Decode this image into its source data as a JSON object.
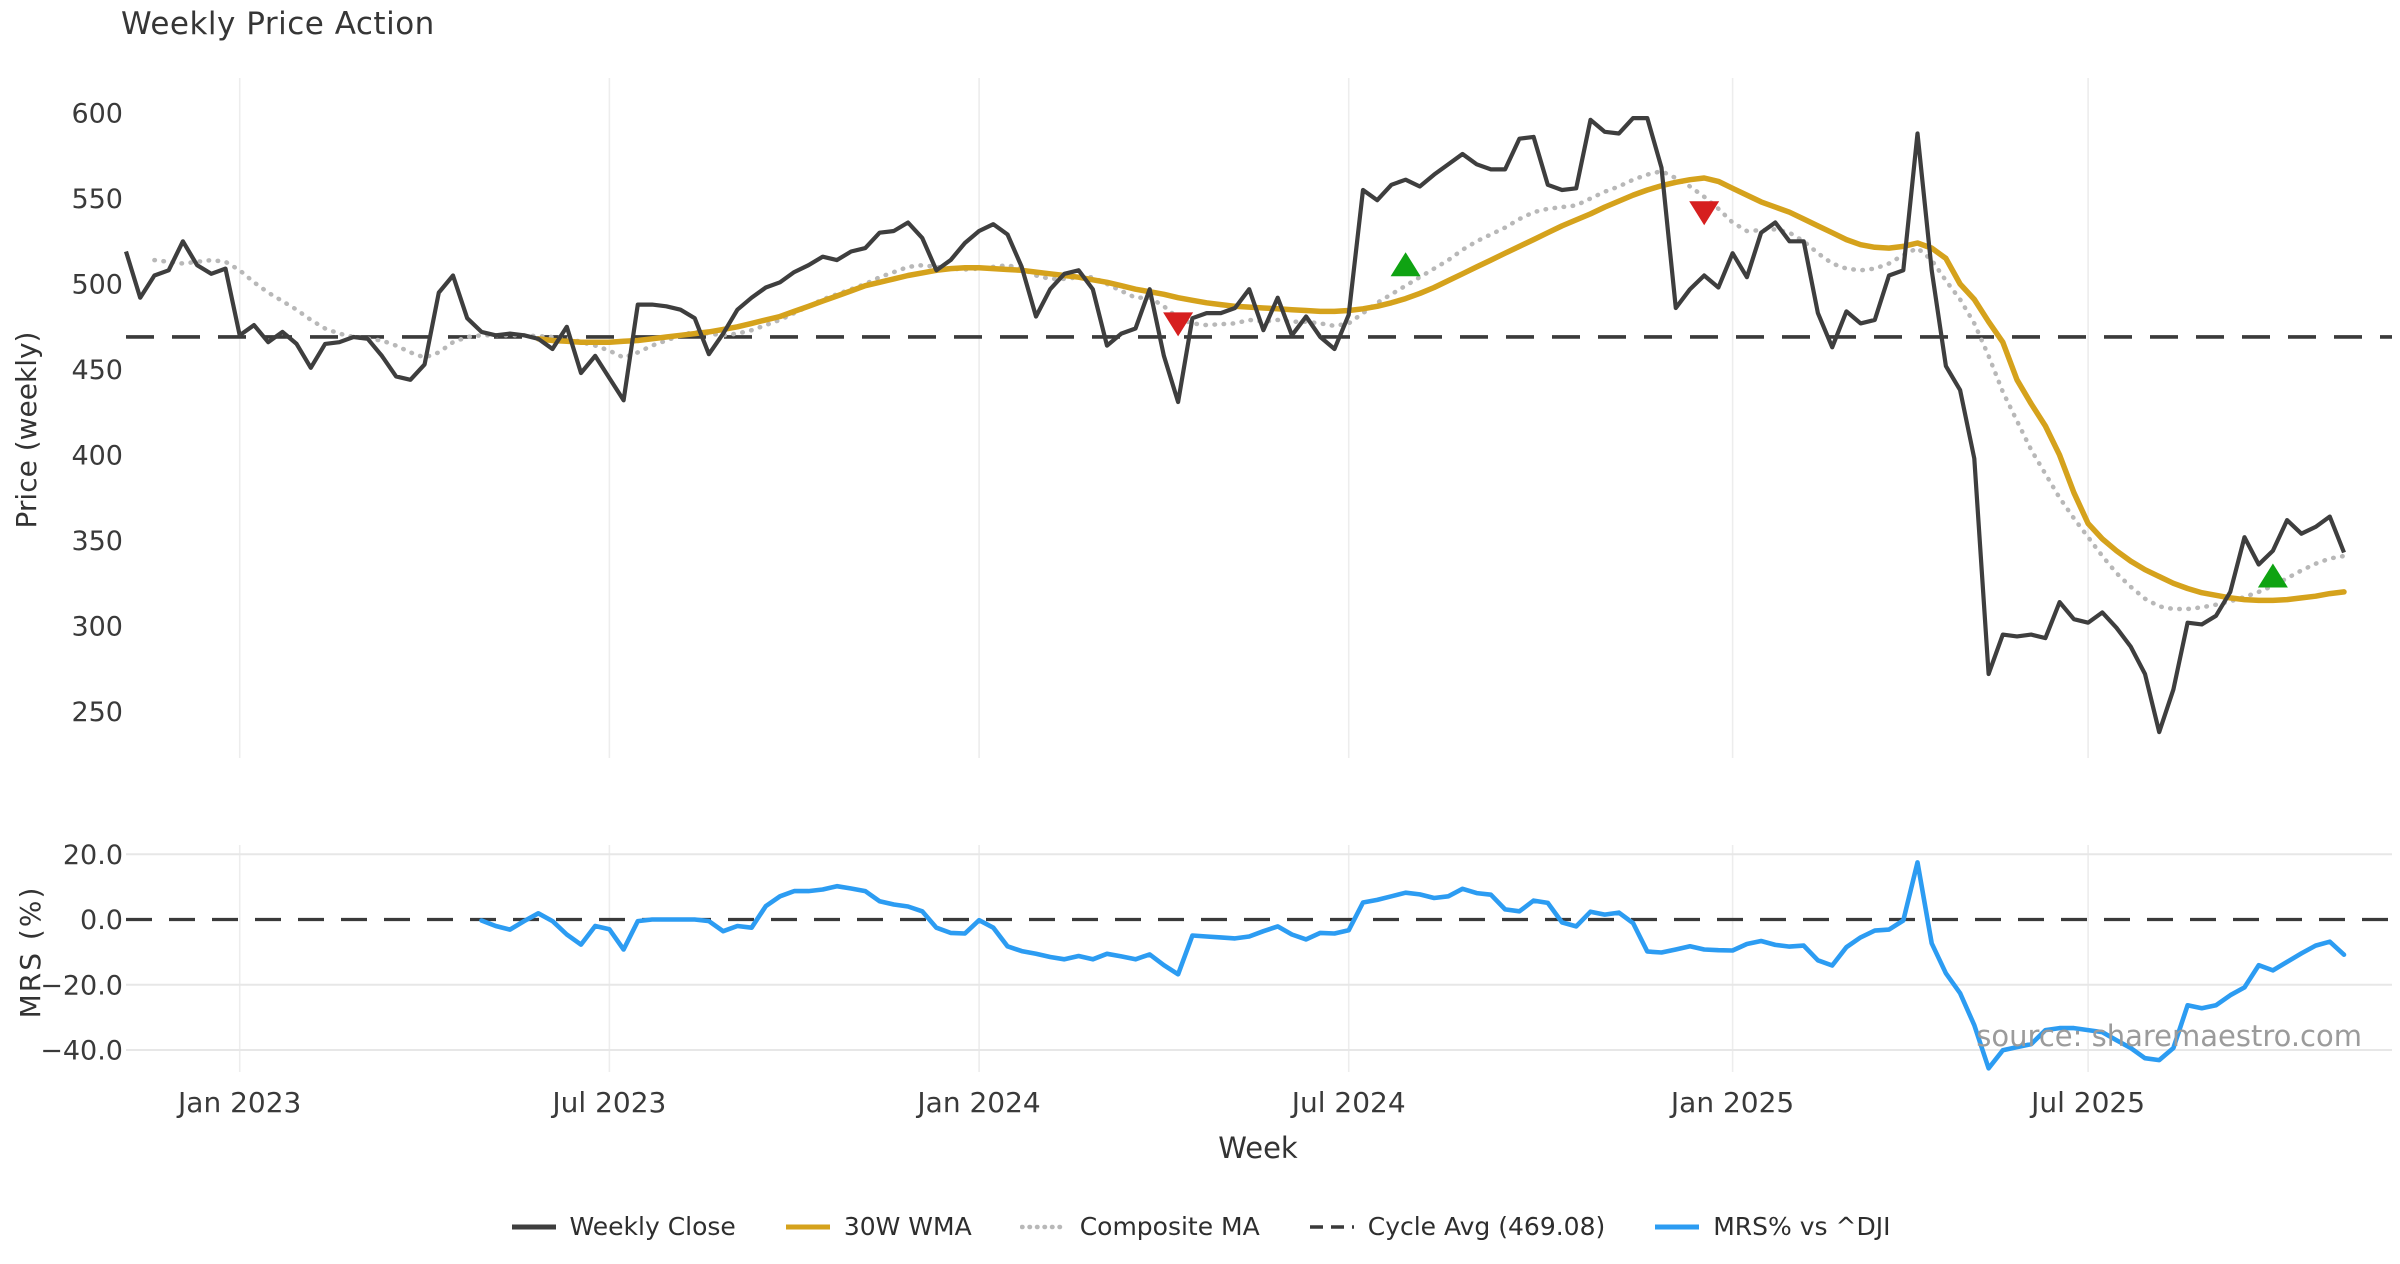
{
  "title": "Weekly Price Action",
  "watermark": "source: sharemaestro.com",
  "xlabel": "Week",
  "legend": {
    "items": [
      {
        "label": "Weekly Close",
        "color": "#3e3e3e",
        "style": "solid"
      },
      {
        "label": "30W WMA",
        "color": "#d5a21c",
        "style": "solid"
      },
      {
        "label": "Composite MA",
        "color": "#b8b8b8",
        "style": "dotted"
      },
      {
        "label": "Cycle Avg (469.08)",
        "color": "#3a3a3a",
        "style": "dashed"
      },
      {
        "label": "MRS% vs ^DJI",
        "color": "#2c9cf2",
        "style": "solid"
      }
    ]
  },
  "chart_data": {
    "type": "line",
    "x_unit": "week",
    "weeks_total": 157,
    "xlabel": "Week",
    "xticks": [
      {
        "week": 8,
        "label": "Jan 2023"
      },
      {
        "week": 34,
        "label": "Jul 2023"
      },
      {
        "week": 60,
        "label": "Jan 2024"
      },
      {
        "week": 86,
        "label": "Jul 2024"
      },
      {
        "week": 113,
        "label": "Jan 2025"
      },
      {
        "week": 138,
        "label": "Jul 2025"
      }
    ],
    "panels": [
      {
        "name": "price",
        "ylabel": "Price (weekly)",
        "ylim": [
          235,
          615
        ],
        "yticks": [
          600,
          550,
          500,
          450,
          400,
          350,
          300,
          250
        ],
        "ytick_labels": [
          "600",
          "550",
          "500",
          "450",
          "400",
          "350",
          "300",
          "250"
        ],
        "grid": "vertical-only",
        "cycle_avg": 469.08,
        "series": [
          {
            "name": "Weekly Close",
            "start_week": 0,
            "color": "#3e3e3e",
            "style": "solid",
            "width": 4.2,
            "values": [
              519,
              492,
              505,
              508,
              525,
              511,
              506,
              509,
              470,
              476,
              466,
              472,
              465,
              451,
              465,
              466,
              469,
              468,
              458,
              446,
              444,
              453,
              495,
              505,
              480,
              472,
              470,
              471,
              470,
              468,
              462,
              475,
              448,
              458,
              445,
              432,
              488,
              488,
              487,
              485,
              480,
              459,
              471,
              485,
              492,
              498,
              501,
              507,
              511,
              516,
              514,
              519,
              521,
              530,
              531,
              536,
              527,
              508,
              514,
              524,
              531,
              535,
              529,
              510,
              481,
              497,
              506,
              508,
              497,
              464,
              471,
              474,
              497,
              458,
              431,
              480,
              483,
              483,
              486,
              497,
              473,
              492,
              470,
              481,
              469,
              462,
              482,
              555,
              549,
              558,
              561,
              557,
              564,
              570,
              576,
              570,
              567,
              567,
              585,
              586,
              558,
              555,
              556,
              596,
              589,
              588,
              597,
              597,
              568,
              486,
              497,
              505,
              498,
              518,
              504,
              530,
              536,
              525,
              525,
              483,
              463,
              484,
              477,
              479,
              505,
              508,
              588,
              508,
              452,
              438,
              398,
              272,
              295,
              294,
              295,
              293,
              314,
              304,
              302,
              308,
              299,
              288,
              272,
              238,
              263,
              302,
              301,
              306,
              320,
              352,
              336,
              344,
              362,
              354,
              358,
              364,
              343
            ]
          },
          {
            "name": "30W WMA",
            "start_week": 29,
            "color": "#d5a21c",
            "style": "solid",
            "width": 5.5,
            "values": [
              468,
              467,
              466.5,
              466,
              466,
              466,
              466.5,
              467,
              468,
              469,
              470,
              471,
              472,
              473.5,
              475,
              477,
              479,
              481,
              484,
              487,
              490,
              493,
              496,
              499,
              501,
              503,
              505,
              506.5,
              508,
              509,
              509.5,
              509.5,
              509,
              508.5,
              508,
              507,
              506,
              505,
              504,
              502.5,
              501,
              499,
              497,
              495.5,
              494,
              492,
              490.5,
              489,
              488,
              487,
              486.5,
              486,
              485.5,
              485,
              484.5,
              484,
              484,
              484.5,
              485.5,
              487,
              489,
              491.5,
              494.5,
              498,
              502,
              506,
              510,
              514,
              518,
              522,
              526,
              530,
              534,
              537.5,
              541,
              545,
              548.5,
              552,
              555,
              557.5,
              559.5,
              561,
              562,
              560,
              556,
              552,
              548,
              545,
              542,
              538,
              534,
              530,
              526,
              523,
              521.5,
              521,
              522,
              524,
              521,
              515,
              500,
              491,
              478,
              466,
              444,
              430,
              417,
              400,
              378,
              360,
              351,
              344,
              338,
              333,
              329,
              325,
              322,
              319.5,
              318,
              316.5,
              315.5,
              315,
              315,
              315.5,
              316.5,
              317.5,
              319,
              320
            ]
          },
          {
            "name": "Composite MA",
            "start_week": 2,
            "color": "#b8b8b8",
            "style": "dotted",
            "width": 4.5,
            "values": [
              514,
              513,
              512,
              513,
              514,
              513,
              508,
              501,
              495,
              490,
              485,
              479,
              474,
              471,
              469,
              468,
              467,
              464,
              460,
              457,
              460,
              466,
              469,
              470,
              470,
              470,
              470,
              469.5,
              469,
              469,
              466,
              464,
              461,
              457,
              460,
              464,
              467,
              470,
              472,
              471,
              470,
              471,
              473,
              476,
              479,
              483,
              487,
              491,
              494,
              497,
              500,
              504,
              507,
              510,
              511,
              510,
              509,
              508.5,
              509,
              510,
              511,
              509,
              505,
              503,
              503,
              504,
              504,
              500,
              496,
              492,
              492,
              487,
              480,
              477,
              476,
              476.5,
              477,
              479,
              478,
              479,
              478,
              478,
              477,
              475.5,
              477,
              483,
              489,
              494,
              499,
              504,
              509,
              514,
              520,
              525,
              529,
              533,
              538,
              542,
              544,
              545,
              546,
              550,
              554,
              557,
              561,
              564,
              566,
              562,
              557,
              551,
              544,
              536,
              531,
              531.5,
              532,
              530,
              525,
              518,
              512,
              509,
              508,
              509,
              512,
              517,
              521,
              514,
              502,
              491,
              477,
              458,
              437,
              420,
              403,
              389,
              375,
              363,
              352,
              341,
              331,
              323,
              316,
              311.5,
              310,
              310,
              311,
              312.5,
              314.5,
              317,
              320,
              323.5,
              328,
              332.5,
              336.5,
              339.5,
              341
            ]
          }
        ],
        "markers": [
          {
            "week": 74,
            "price": 477,
            "type": "sell"
          },
          {
            "week": 90,
            "price": 511,
            "type": "buy"
          },
          {
            "week": 111,
            "price": 542,
            "type": "sell"
          },
          {
            "week": 151,
            "price": 329,
            "type": "buy"
          }
        ]
      },
      {
        "name": "mrs",
        "ylabel": "MRS (%)",
        "ylim": [
          -50,
          25
        ],
        "yticks": [
          20,
          0,
          -20,
          -40
        ],
        "ytick_labels": [
          "20.0",
          "0.0",
          "−20.0",
          "−40.0"
        ],
        "grid": "horizontal-and-vertical",
        "zero_dashed": true,
        "series": [
          {
            "name": "MRS% vs ^DJI",
            "start_week": 25,
            "color": "#2c9cf2",
            "style": "solid",
            "width": 4.6,
            "values": [
              -0.3,
              -2.0,
              -3.1,
              -0.5,
              1.9,
              -0.5,
              -4.6,
              -7.7,
              -2.0,
              -3.0,
              -9.2,
              -0.5,
              0.0,
              0.0,
              0.0,
              0.0,
              -0.5,
              -3.6,
              -2.0,
              -2.5,
              4.1,
              7.1,
              8.7,
              8.7,
              9.2,
              10.2,
              9.5,
              8.7,
              5.6,
              4.6,
              4.0,
              2.5,
              -2.5,
              -4.1,
              -4.3,
              -0.2,
              -2.5,
              -8.2,
              -9.7,
              -10.5,
              -11.5,
              -12.2,
              -11.2,
              -12.2,
              -10.5,
              -11.3,
              -12.2,
              -10.7,
              -14.0,
              -16.8,
              -4.9,
              -5.2,
              -5.5,
              -5.8,
              -5.2,
              -3.6,
              -2.1,
              -4.6,
              -6.1,
              -4.1,
              -4.3,
              -3.3,
              5.2,
              6.0,
              7.1,
              8.2,
              7.7,
              6.6,
              7.1,
              9.4,
              8.1,
              7.6,
              3.1,
              2.5,
              5.8,
              5.1,
              -0.9,
              -2.1,
              2.4,
              1.5,
              2.1,
              -1.1,
              -9.8,
              -10.1,
              -9.2,
              -8.2,
              -9.2,
              -9.4,
              -9.5,
              -7.5,
              -6.6,
              -7.8,
              -8.3,
              -8.0,
              -12.5,
              -14.1,
              -8.5,
              -5.5,
              -3.4,
              -3.1,
              -0.3,
              17.5,
              -7.3,
              -16.5,
              -22.6,
              -32.4,
              -45.6,
              -40.1,
              -39.1,
              -38.2,
              -33.9,
              -33.3,
              -33.3,
              -33.9,
              -34.5,
              -37.0,
              -39.4,
              -42.5,
              -43.1,
              -39.4,
              -26.3,
              -27.2,
              -26.3,
              -23.2,
              -20.8,
              -14.0,
              -15.6,
              -13.0,
              -10.4,
              -8.0,
              -6.8,
              -10.8
            ]
          }
        ]
      }
    ]
  }
}
